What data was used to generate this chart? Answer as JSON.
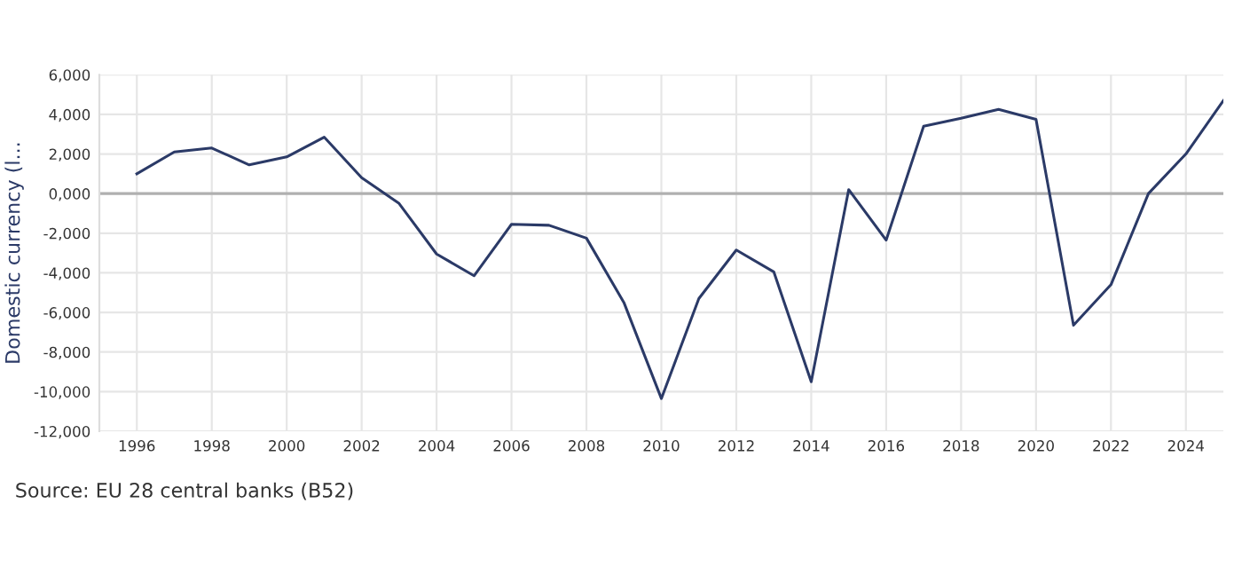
{
  "chart_data": {
    "type": "line",
    "ylabel": "Domestic currency (l...",
    "x": [
      1996,
      1997,
      1998,
      1999,
      2000,
      2001,
      2002,
      2003,
      2004,
      2005,
      2006,
      2007,
      2008,
      2009,
      2010,
      2011,
      2012,
      2013,
      2014,
      2015,
      2016,
      2017,
      2018,
      2019,
      2020,
      2021,
      2022,
      2023,
      2024,
      2025
    ],
    "series": [
      {
        "color": "#2b3a67",
        "values": [
          1000,
          2100,
          2300,
          1450,
          1850,
          2850,
          800,
          -500,
          -3050,
          -4150,
          -1550,
          -1600,
          -2250,
          -5500,
          -10350,
          -5300,
          -2850,
          -3950,
          -9500,
          200,
          -2350,
          3400,
          3800,
          4250,
          3750,
          -6650,
          -4600,
          0,
          2000,
          4700
        ]
      }
    ],
    "xlim": [
      1995,
      2025
    ],
    "xticks": [
      1996,
      1998,
      2000,
      2002,
      2004,
      2006,
      2008,
      2010,
      2012,
      2014,
      2016,
      2018,
      2020,
      2022,
      2024
    ],
    "ylim": [
      -12000,
      6000
    ],
    "yticks": [
      {
        "value": -12000,
        "label": "-12,000"
      },
      {
        "value": -10000,
        "label": "-10,000"
      },
      {
        "value": -8000,
        "label": "-8,000"
      },
      {
        "value": -6000,
        "label": "-6,000"
      },
      {
        "value": -4000,
        "label": "-4,000"
      },
      {
        "value": -2000,
        "label": "-2,000"
      },
      {
        "value": 0,
        "label": "0,000"
      },
      {
        "value": 2000,
        "label": "2,000"
      },
      {
        "value": 4000,
        "label": "4,000"
      },
      {
        "value": 6000,
        "label": "6,000"
      }
    ],
    "ref_lines": [
      {
        "axis": "y",
        "value": 0,
        "color": "#b0b0b0"
      }
    ],
    "grid": true,
    "legend": false,
    "marker": "none",
    "line_style": "solid",
    "annotations": [
      "Source: EU 28 central banks (B52)"
    ]
  }
}
